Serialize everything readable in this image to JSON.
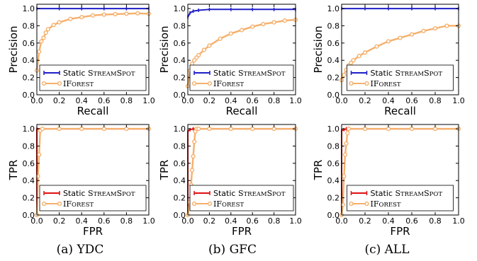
{
  "colors": {
    "static": "#1f1fc8",
    "iforest": "#f5b06c",
    "static_roc": "#e01010"
  },
  "captions": [
    "(a) YDC",
    "(b) GFC",
    "(c) ALL"
  ],
  "chart_data": [
    {
      "type": "line",
      "panel": "pr-ydc",
      "xlabel": "Recall",
      "ylabel": "Precision",
      "xlim": [
        0.0,
        1.0
      ],
      "ylim": [
        0.0,
        1.05
      ],
      "xticks": [
        "0.0",
        "0.2",
        "0.4",
        "0.6",
        "0.8",
        "1.0"
      ],
      "yticks": [
        "0.0",
        "0.2",
        "0.4",
        "0.6",
        "0.8",
        "1.0"
      ],
      "legend_position": "bottom-center",
      "series": [
        {
          "name": "Static StreamSpot",
          "legend_main": "Static ",
          "legend_sc": "StreamSpot",
          "color": "#1f1fc8",
          "x": [
            0.0,
            0.2,
            0.4,
            0.6,
            0.8,
            1.0
          ],
          "y": [
            1.0,
            1.0,
            1.0,
            1.0,
            1.0,
            1.0
          ]
        },
        {
          "name": "iForest",
          "legend_main": "",
          "legend_sc": "iForest",
          "color": "#f5b06c",
          "x": [
            0.0,
            0.02,
            0.04,
            0.06,
            0.08,
            0.1,
            0.15,
            0.2,
            0.3,
            0.4,
            0.5,
            0.6,
            0.7,
            0.8,
            0.9,
            1.0
          ],
          "y": [
            0.28,
            0.5,
            0.62,
            0.66,
            0.72,
            0.76,
            0.81,
            0.84,
            0.88,
            0.9,
            0.92,
            0.93,
            0.935,
            0.94,
            0.945,
            0.94
          ]
        }
      ]
    },
    {
      "type": "line",
      "panel": "pr-gfc",
      "xlabel": "Recall",
      "ylabel": "Precision",
      "xlim": [
        0.0,
        1.0
      ],
      "ylim": [
        0.0,
        1.05
      ],
      "xticks": [
        "0.0",
        "0.2",
        "0.4",
        "0.6",
        "0.8",
        "1.0"
      ],
      "yticks": [
        "0.0",
        "0.2",
        "0.4",
        "0.6",
        "0.8",
        "1.0"
      ],
      "legend_position": "bottom-center",
      "series": [
        {
          "name": "Static StreamSpot",
          "legend_main": "Static ",
          "legend_sc": "StreamSpot",
          "color": "#1f1fc8",
          "x": [
            0.0,
            0.02,
            0.05,
            0.1,
            0.2,
            0.4,
            0.6,
            0.8,
            1.0
          ],
          "y": [
            0.9,
            0.95,
            0.97,
            0.98,
            0.99,
            0.99,
            0.99,
            0.99,
            0.99
          ]
        },
        {
          "name": "iForest",
          "legend_main": "",
          "legend_sc": "iForest",
          "color": "#f5b06c",
          "x": [
            0.0,
            0.02,
            0.04,
            0.06,
            0.08,
            0.1,
            0.15,
            0.2,
            0.3,
            0.4,
            0.5,
            0.6,
            0.7,
            0.8,
            0.9,
            1.0
          ],
          "y": [
            0.1,
            0.28,
            0.36,
            0.4,
            0.43,
            0.46,
            0.52,
            0.57,
            0.65,
            0.71,
            0.75,
            0.79,
            0.82,
            0.84,
            0.86,
            0.87
          ]
        }
      ]
    },
    {
      "type": "line",
      "panel": "pr-all",
      "xlabel": "Recall",
      "ylabel": "Precision",
      "xlim": [
        0.0,
        1.0
      ],
      "ylim": [
        0.0,
        1.05
      ],
      "xticks": [
        "0.0",
        "0.2",
        "0.4",
        "0.6",
        "0.8",
        "1.0"
      ],
      "yticks": [
        "0.0",
        "0.2",
        "0.4",
        "0.6",
        "0.8",
        "1.0"
      ],
      "legend_position": "bottom-center",
      "series": [
        {
          "name": "Static StreamSpot",
          "legend_main": "Static ",
          "legend_sc": "StreamSpot",
          "color": "#1f1fc8",
          "x": [
            0.0,
            0.2,
            0.4,
            0.6,
            0.8,
            1.0
          ],
          "y": [
            1.0,
            1.0,
            1.0,
            1.0,
            1.0,
            1.0
          ]
        },
        {
          "name": "iForest",
          "legend_main": "",
          "legend_sc": "iForest",
          "color": "#f5b06c",
          "x": [
            0.0,
            0.02,
            0.04,
            0.06,
            0.08,
            0.1,
            0.15,
            0.2,
            0.3,
            0.4,
            0.5,
            0.6,
            0.7,
            0.8,
            0.9,
            1.0
          ],
          "y": [
            0.17,
            0.23,
            0.29,
            0.34,
            0.37,
            0.4,
            0.45,
            0.49,
            0.56,
            0.62,
            0.66,
            0.7,
            0.74,
            0.77,
            0.8,
            0.8
          ]
        }
      ]
    },
    {
      "type": "line",
      "panel": "roc-ydc",
      "xlabel": "FPR",
      "ylabel": "TPR",
      "xlim": [
        0.0,
        1.0
      ],
      "ylim": [
        0.0,
        1.05
      ],
      "xticks": [
        "0.0",
        "0.2",
        "0.4",
        "0.6",
        "0.8",
        "1.0"
      ],
      "yticks": [
        "0.0",
        "0.2",
        "0.4",
        "0.6",
        "0.8",
        "1.0"
      ],
      "legend_position": "bottom-center",
      "series": [
        {
          "name": "Static StreamSpot",
          "legend_main": "Static ",
          "legend_sc": "StreamSpot",
          "color": "#e01010",
          "x": [
            0.0,
            0.0,
            0.2,
            0.4,
            0.6,
            0.8,
            1.0
          ],
          "y": [
            0.0,
            1.0,
            1.0,
            1.0,
            1.0,
            1.0,
            1.0
          ]
        },
        {
          "name": "iForest",
          "legend_main": "",
          "legend_sc": "iForest",
          "color": "#f5b06c",
          "x": [
            0.0,
            0.01,
            0.02,
            0.03,
            0.05,
            0.2,
            0.4,
            0.6,
            0.8,
            1.0
          ],
          "y": [
            0.0,
            0.45,
            0.7,
            0.98,
            1.0,
            1.0,
            1.0,
            1.0,
            1.0,
            1.0
          ]
        }
      ]
    },
    {
      "type": "line",
      "panel": "roc-gfc",
      "xlabel": "FPR",
      "ylabel": "TPR",
      "xlim": [
        0.0,
        1.0
      ],
      "ylim": [
        0.0,
        1.05
      ],
      "xticks": [
        "0.0",
        "0.2",
        "0.4",
        "0.6",
        "0.8",
        "1.0"
      ],
      "yticks": [
        "0.0",
        "0.2",
        "0.4",
        "0.6",
        "0.8",
        "1.0"
      ],
      "legend_position": "bottom-center",
      "series": [
        {
          "name": "Static StreamSpot",
          "legend_main": "Static ",
          "legend_sc": "StreamSpot",
          "color": "#e01010",
          "x": [
            0.0,
            0.0,
            0.02,
            0.05,
            0.2,
            0.4,
            0.6,
            0.8,
            1.0
          ],
          "y": [
            0.0,
            0.97,
            0.99,
            1.0,
            1.0,
            1.0,
            1.0,
            1.0,
            1.0
          ]
        },
        {
          "name": "iForest",
          "legend_main": "",
          "legend_sc": "iForest",
          "color": "#f5b06c",
          "x": [
            0.0,
            0.02,
            0.03,
            0.04,
            0.05,
            0.06,
            0.07,
            0.08,
            0.1,
            0.2,
            0.4,
            0.6,
            0.8,
            1.0
          ],
          "y": [
            0.0,
            0.15,
            0.35,
            0.52,
            0.68,
            0.85,
            0.97,
            1.0,
            1.0,
            1.0,
            1.0,
            1.0,
            1.0,
            1.0
          ]
        }
      ]
    },
    {
      "type": "line",
      "panel": "roc-all",
      "xlabel": "FPR",
      "ylabel": "TPR",
      "xlim": [
        0.0,
        1.0
      ],
      "ylim": [
        0.0,
        1.05
      ],
      "xticks": [
        "0.0",
        "0.2",
        "0.4",
        "0.6",
        "0.8",
        "1.0"
      ],
      "yticks": [
        "0.0",
        "0.2",
        "0.4",
        "0.6",
        "0.8",
        "1.0"
      ],
      "legend_position": "bottom-center",
      "series": [
        {
          "name": "Static StreamSpot",
          "legend_main": "Static ",
          "legend_sc": "StreamSpot",
          "color": "#e01010",
          "x": [
            0.0,
            0.0,
            0.02,
            0.04,
            0.2,
            0.4,
            0.6,
            0.8,
            1.0
          ],
          "y": [
            0.0,
            0.98,
            0.99,
            1.0,
            1.0,
            1.0,
            1.0,
            1.0,
            1.0
          ]
        },
        {
          "name": "iForest",
          "legend_main": "",
          "legend_sc": "iForest",
          "color": "#f5b06c",
          "x": [
            0.0,
            0.01,
            0.02,
            0.03,
            0.04,
            0.05,
            0.06,
            0.2,
            0.4,
            0.6,
            0.8,
            1.0
          ],
          "y": [
            0.0,
            0.12,
            0.45,
            0.7,
            0.83,
            0.95,
            1.0,
            1.0,
            1.0,
            1.0,
            1.0,
            1.0
          ]
        }
      ]
    }
  ]
}
